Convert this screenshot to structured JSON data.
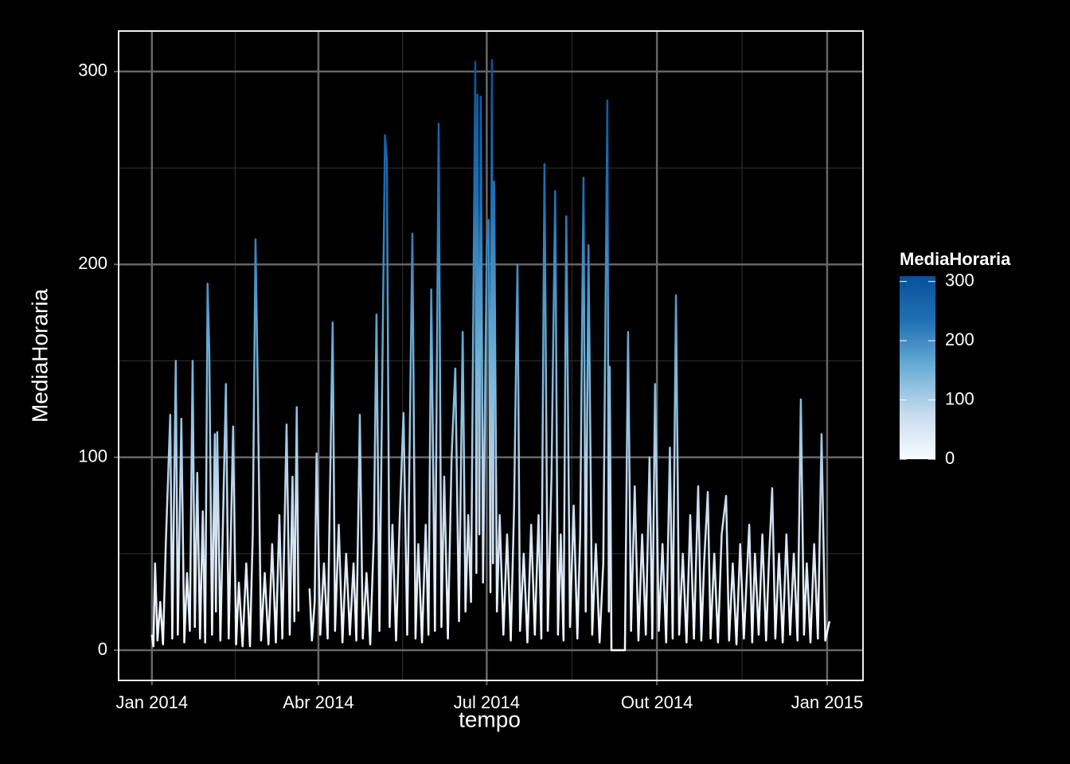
{
  "chart_data": {
    "type": "line",
    "x_label": "tempo",
    "y_label": "MediaHoraria",
    "x": [
      0,
      0.8,
      1.7,
      3,
      4.5,
      6,
      7.5,
      9.9,
      11,
      12.9,
      14,
      15.9,
      17.5,
      19,
      20.5,
      22,
      23.2,
      24.5,
      26,
      27.5,
      28.8,
      30.1,
      31,
      32.5,
      34,
      34.6,
      35.3,
      37,
      38.5,
      40,
      41.5,
      43.9,
      45.5,
      47,
      49,
      51,
      53,
      54.5,
      56,
      57.3,
      59,
      61,
      63,
      65,
      67,
      68.9,
      70.5,
      72.8,
      74.5,
      76,
      77,
      78.3,
      79.2,
      80,
      85.2,
      86.5,
      88,
      89,
      91,
      93,
      95,
      97.7,
      99,
      101,
      103,
      105,
      107,
      109,
      110.5,
      112.4,
      114,
      116,
      118,
      120,
      121.4,
      123,
      124.5,
      126,
      127,
      128.5,
      130,
      132,
      134,
      136,
      138,
      140.8,
      142.5,
      144,
      146,
      148,
      149.5,
      151,
      153,
      155,
      156.5,
      158,
      160,
      162,
      164,
      166,
      168,
      169.5,
      171,
      172.5,
      174.8,
      175.4,
      176,
      177,
      177.8,
      179,
      181,
      182.1,
      183,
      183.8,
      184.4,
      185,
      186.5,
      188,
      190,
      192,
      194,
      195.8,
      197.6,
      199,
      201,
      203,
      205,
      207,
      209,
      210.5,
      212.2,
      214,
      216,
      218,
      219.5,
      221,
      222.5,
      224,
      226,
      228,
      230,
      231.5,
      233.3,
      234.5,
      236,
      238,
      240,
      242,
      244,
      246.2,
      247,
      247.5,
      248.4,
      255.7,
      257.4,
      259,
      261,
      263,
      265,
      267,
      269,
      270.5,
      272,
      274,
      276,
      278,
      280,
      281.5,
      283.3,
      285,
      287,
      289,
      291,
      293,
      295.3,
      297,
      298.5,
      300.5,
      302,
      304,
      306,
      308,
      310.4,
      312,
      314,
      316,
      318,
      320,
      322.9,
      324.5,
      326,
      328,
      330,
      332,
      333.5,
      335.3,
      337,
      339,
      341,
      343,
      345,
      347,
      349,
      350.8,
      352.5,
      354,
      356,
      358,
      360,
      362,
      364,
      366.3
    ],
    "values": [
      8,
      2,
      45,
      5,
      25,
      3,
      55,
      122,
      6,
      150,
      8,
      120,
      4,
      40,
      10,
      150,
      12,
      92,
      6,
      72,
      4,
      190,
      155,
      8,
      112,
      20,
      113,
      5,
      70,
      138,
      6,
      116,
      3,
      35,
      2,
      45,
      2,
      60,
      213,
      130,
      5,
      40,
      3,
      55,
      4,
      70,
      6,
      117,
      8,
      90,
      15,
      126,
      20,
      null,
      32,
      5,
      25,
      102,
      8,
      45,
      6,
      170,
      10,
      65,
      4,
      50,
      8,
      45,
      5,
      122,
      6,
      40,
      3,
      60,
      174,
      10,
      140,
      267,
      254,
      12,
      65,
      5,
      70,
      123,
      8,
      216,
      6,
      55,
      4,
      65,
      8,
      187,
      10,
      273,
      12,
      90,
      6,
      100,
      146,
      15,
      165,
      20,
      70,
      25,
      305,
      40,
      288,
      60,
      287,
      35,
      210,
      223,
      30,
      306,
      45,
      243,
      20,
      70,
      8,
      60,
      5,
      75,
      200,
      10,
      50,
      4,
      65,
      8,
      70,
      6,
      252,
      10,
      90,
      238,
      8,
      60,
      5,
      225,
      12,
      75,
      6,
      60,
      245,
      20,
      210,
      8,
      55,
      4,
      45,
      285,
      20,
      147,
      0,
      0,
      165,
      10,
      85,
      5,
      60,
      8,
      100,
      6,
      138,
      10,
      55,
      4,
      105,
      6,
      184,
      8,
      50,
      4,
      70,
      6,
      85,
      5,
      45,
      82,
      6,
      50,
      4,
      60,
      80,
      5,
      45,
      3,
      55,
      6,
      65,
      4,
      50,
      8,
      60,
      5,
      45,
      84,
      6,
      50,
      4,
      60,
      8,
      50,
      5,
      130,
      8,
      45,
      4,
      55,
      6,
      112,
      5,
      15
    ],
    "xlim": [
      -18,
      384.4
    ],
    "xticks": [
      {
        "value": 0,
        "label": "Jan 2014"
      },
      {
        "value": 90,
        "label": "Abr 2014"
      },
      {
        "value": 181,
        "label": "Jul 2014"
      },
      {
        "value": 273,
        "label": "Out 2014"
      },
      {
        "value": 365,
        "label": "Jan 2015"
      }
    ],
    "ylim": [
      -15.7,
      321
    ],
    "yticks": [
      0,
      100,
      200,
      300
    ],
    "grid": true,
    "legend_title": "MediaHoraria",
    "color_lim": [
      0,
      309
    ],
    "color_ticks": [
      0,
      100,
      200,
      300
    ],
    "colors": [
      "#f7fbff",
      "#c6dbef",
      "#6baed6",
      "#2171b5",
      "#08519c"
    ]
  }
}
